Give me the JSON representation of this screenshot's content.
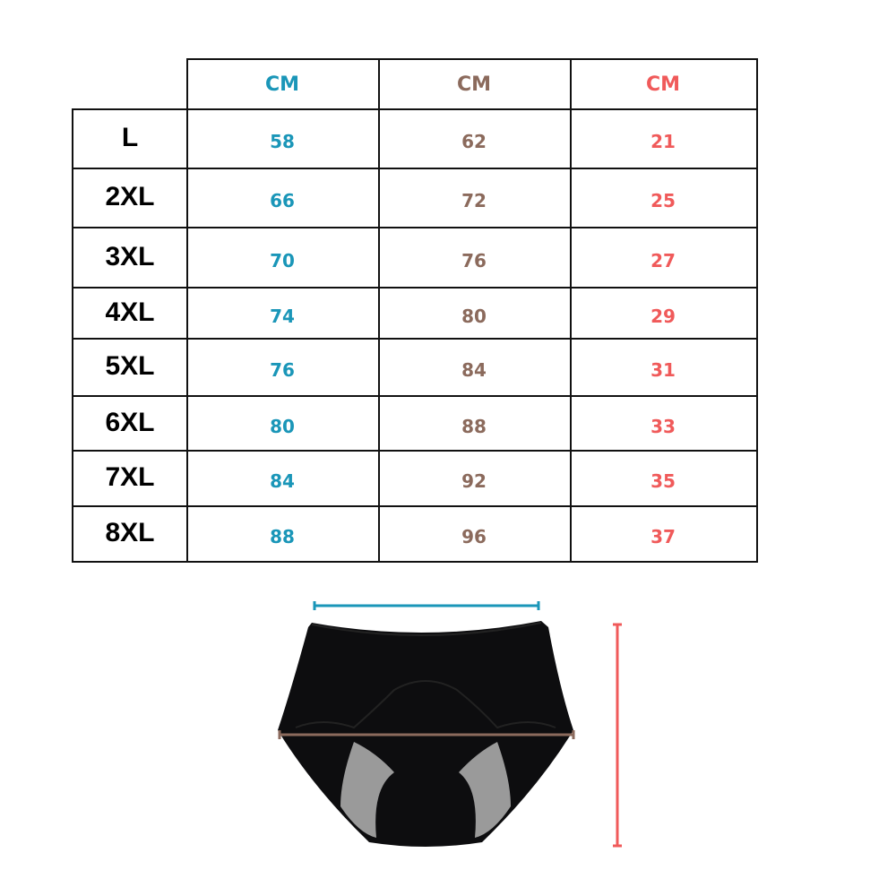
{
  "colors": {
    "col1": "#1a96b8",
    "col2": "#8b6a5c",
    "col3": "#f05a5a"
  },
  "table": {
    "headers": [
      "CM",
      "CM",
      "CM"
    ],
    "rows": [
      {
        "size": "L",
        "values": [
          "58",
          "62",
          "21"
        ]
      },
      {
        "size": "2XL",
        "values": [
          "66",
          "72",
          "25"
        ]
      },
      {
        "size": "3XL",
        "values": [
          "70",
          "76",
          "27"
        ]
      },
      {
        "size": "4XL",
        "values": [
          "74",
          "80",
          "29"
        ]
      },
      {
        "size": "5XL",
        "values": [
          "76",
          "84",
          "31"
        ]
      },
      {
        "size": "6XL",
        "values": [
          "80",
          "88",
          "33"
        ]
      },
      {
        "size": "7XL",
        "values": [
          "84",
          "92",
          "35"
        ]
      },
      {
        "size": "8XL",
        "values": [
          "88",
          "96",
          "37"
        ]
      }
    ]
  },
  "image": {
    "subject": "underwear-product-photo",
    "measure_lines": [
      "waist-width",
      "hip-width",
      "length"
    ]
  }
}
